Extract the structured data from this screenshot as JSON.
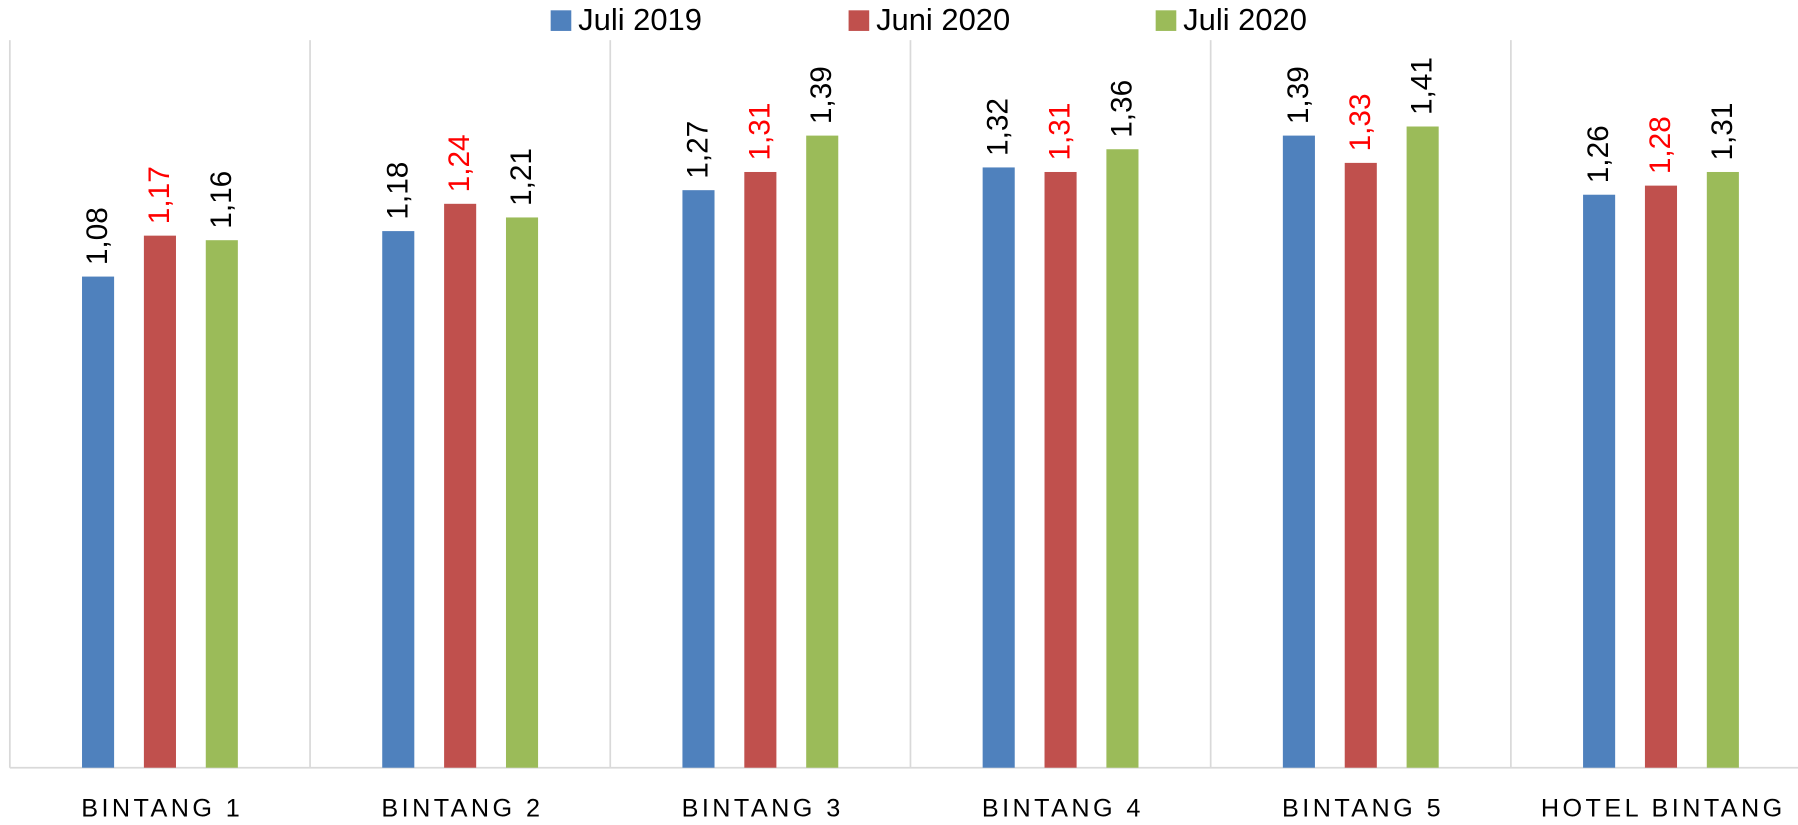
{
  "chart_data": {
    "type": "bar",
    "categories": [
      "BINTANG 1",
      "BINTANG 2",
      "BINTANG 3",
      "BINTANG 4",
      "BINTANG 5",
      "HOTEL BINTANG"
    ],
    "series": [
      {
        "name": "Juli 2019",
        "color": "#4f81bd",
        "label_color": "#000000",
        "values": [
          1.08,
          1.18,
          1.27,
          1.32,
          1.39,
          1.26
        ],
        "value_labels": [
          "1,08",
          "1,18",
          "1,27",
          "1,32",
          "1,39",
          "1,26"
        ]
      },
      {
        "name": "Juni 2020",
        "color": "#c0504d",
        "label_color": "#ff0000",
        "values": [
          1.17,
          1.24,
          1.31,
          1.31,
          1.33,
          1.28
        ],
        "value_labels": [
          "1,17",
          "1,24",
          "1,31",
          "1,31",
          "1,33",
          "1,28"
        ]
      },
      {
        "name": "Juli 2020",
        "color": "#9bbb59",
        "label_color": "#000000",
        "values": [
          1.16,
          1.21,
          1.39,
          1.36,
          1.41,
          1.31
        ],
        "value_labels": [
          "1,16",
          "1,21",
          "1,39",
          "1,36",
          "1,41",
          "1,31"
        ]
      }
    ],
    "ylim": [
      0,
      1.6
    ],
    "legend": "top"
  }
}
